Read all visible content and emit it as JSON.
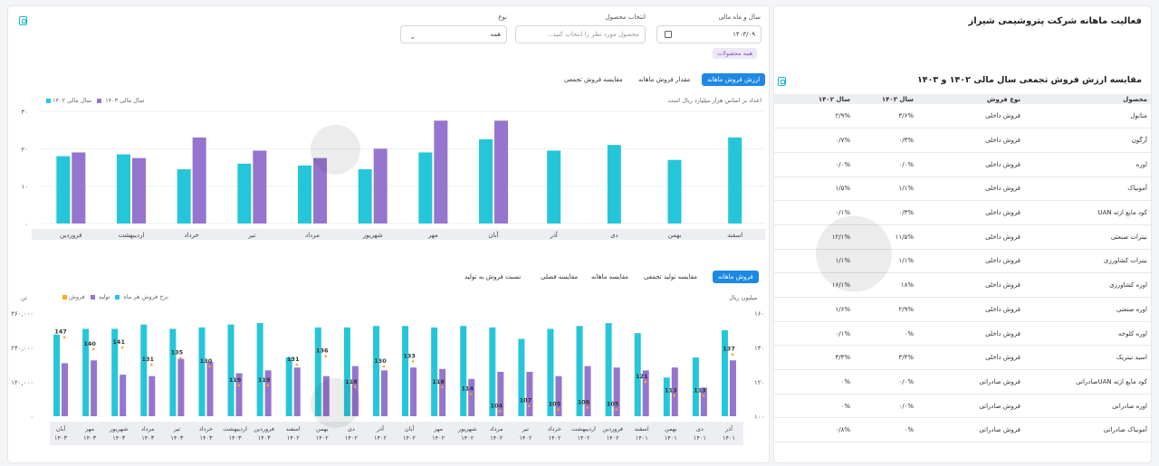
{
  "page_title": "فعالیت ماهانه شرکت پتروشیمی شیراز",
  "filters": {
    "year_month_label": "سال و ماه مالی",
    "year_month_value": "۱۴۰۳/۰۹",
    "product_label": "انتخاب محصول",
    "product_placeholder": "محصول مورد نظر را انتخاب کنید...",
    "type_label": "نوع",
    "type_value": "همه",
    "all_products_chip": "همه محصولات"
  },
  "top_chart": {
    "tabs": [
      "ارزش فروش ماهانه",
      "مقدار فروش ماهانه",
      "مقایسه فروش تجمعی"
    ],
    "active_tab": 0,
    "note": "اعداد بر اساس هزار میلیارد ریال است",
    "legend": [
      "سال مالی ۱۴۰۳",
      "سال مالی ۱۴۰۲"
    ],
    "y_ticks": [
      "۰",
      "۱۰",
      "۲۰",
      "۳۰"
    ]
  },
  "bottom_chart": {
    "tabs": [
      "فروش ماهانه",
      "مقایسه تولید تجمعی",
      "مقایسه ماهانه",
      "مقایسه فصلی",
      "نسبت فروش به تولید"
    ],
    "active_tab": 0,
    "legend": [
      "فروش",
      "تولید",
      "نرخ فروش هر ماه"
    ],
    "left_axis_label": "تن",
    "right_axis_label": "میلیون ریال",
    "left_ticks": [
      "۰",
      "۱۲۰,۰۰۰",
      "۲۴۰,۰۰۰",
      "۳۶۰,۰۰۰"
    ],
    "right_ticks": [
      "۱۰۰",
      "۱۲۰",
      "۱۴۰",
      "۱۶۰"
    ]
  },
  "right_panel": {
    "title": "مقایسه ارزش فروش تجمعی سال مالی ۱۴۰۲ و ۱۴۰۳",
    "columns": [
      "محصول",
      "نوع فروش",
      "سال ۱۴۰۳",
      "سال ۱۴۰۲"
    ],
    "rows": [
      [
        "متانول",
        "فروش داخلی",
        "۳/۶%",
        "۲/۹%"
      ],
      [
        "آرگون",
        "فروش داخلی",
        "۰/۳%",
        "۰/۷%"
      ],
      [
        "اوره",
        "فروش داخلی",
        "۰/۰%",
        "۰/۰%"
      ],
      [
        "آمونیاک",
        "فروش داخلی",
        "۱/۱%",
        "۱/۵%"
      ],
      [
        "کود مایع ازته UAN",
        "فروش داخلی",
        "۰/۳%",
        "۰/۱%"
      ],
      [
        "نیترات صنعتی",
        "فروش داخلی",
        "۱۱/۵%",
        "۱۲/۱%"
      ],
      [
        "نیترات کشاورزی",
        "فروش داخلی",
        "۱/۱%",
        "۱/۱%"
      ],
      [
        "اوره کشاورزی",
        "فروش داخلی",
        "۱۸%",
        "۱۶/۱%"
      ],
      [
        "اوره صنعتی",
        "فروش داخلی",
        "۲/۹%",
        "۱/۶%"
      ],
      [
        "اوره کلوخه",
        "فروش داخلی",
        "۰%",
        "۰/۱%"
      ],
      [
        "اسید نیتریک",
        "فروش داخلی",
        "۳/۴%",
        "۳/۴%"
      ],
      [
        "کود مایع ازته UANصادراتی",
        "فروش صادراتی",
        "۰/۰%",
        "۰%"
      ],
      [
        "اوره صادراتی",
        "فروش صادراتی",
        "۰/۰%",
        "۰%"
      ],
      [
        "آمونیاک صادراتی",
        "فروش صادراتی",
        "۰%",
        "۰/۸%"
      ]
    ]
  },
  "colors": {
    "cyan": "#26c6da",
    "purple": "#9575cd",
    "orange": "#ffa726",
    "active_tab": "#1e88e5"
  },
  "chart_data": [
    {
      "type": "bar",
      "title": "",
      "categories": [
        "اسفند",
        "بهمن",
        "دی",
        "آذر",
        "آبان",
        "مهر",
        "شهریور",
        "مرداد",
        "تیر",
        "خرداد",
        "اردیبهشت",
        "فروردین"
      ],
      "series": [
        {
          "name": "سال مالی ۱۴۰۳",
          "values": [
            23,
            17,
            21,
            19.5,
            22.5,
            19,
            14.5,
            15.5,
            16,
            14.5,
            18.5,
            18
          ]
        },
        {
          "name": "سال مالی ۱۴۰۲",
          "values": [
            null,
            null,
            null,
            null,
            27.5,
            27.5,
            20,
            17.5,
            19.5,
            23,
            17.5,
            19
          ]
        }
      ],
      "ylim": [
        0,
        30
      ]
    },
    {
      "type": "bar",
      "title": "",
      "categories": [
        "آذر ۱۴۰۱",
        "دی ۱۴۰۱",
        "بهمن ۱۴۰۱",
        "اسفند ۱۴۰۱",
        "فروردین ۱۴۰۲",
        "اردیبهشت ۱۴۰۲",
        "خرداد ۱۴۰۲",
        "تیر ۱۴۰۲",
        "مرداد ۱۴۰۲",
        "شهریور ۱۴۰۲",
        "مهر ۱۴۰۲",
        "آبان ۱۴۰۲",
        "آذر ۱۴۰۲",
        "دی ۱۴۰۲",
        "بهمن ۱۴۰۲",
        "اسفند ۱۴۰۲",
        "فروردین ۱۴۰۳",
        "اردیبهشت ۱۴۰۳",
        "خرداد ۱۴۰۳",
        "تیر ۱۴۰۳",
        "مرداد ۱۴۰۳",
        "شهریور ۱۴۰۳",
        "مهر ۱۴۰۳",
        "آبان ۱۴۰۳"
      ],
      "series": [
        {
          "name": "تولید",
          "values": [
            300000,
            205000,
            135000,
            290000,
            325000,
            315000,
            305000,
            270000,
            310000,
            315000,
            310000,
            315000,
            315000,
            310000,
            310000,
            205000,
            325000,
            320000,
            310000,
            305000,
            320000,
            305000,
            305000,
            285000
          ]
        },
        {
          "name": "فروش",
          "values": [
            195000,
            100000,
            170000,
            160000,
            170000,
            175000,
            140000,
            155000,
            155000,
            130000,
            165000,
            170000,
            160000,
            175000,
            140000,
            170000,
            160000,
            150000,
            190000,
            200000,
            140000,
            145000,
            195000,
            185000
          ]
        }
      ],
      "line": {
        "name": "نرخ فروش هر ماه",
        "values": [
          137,
          113,
          113,
          121,
          105,
          106,
          105,
          107,
          104,
          114,
          118,
          133,
          130,
          118,
          136,
          131,
          119,
          119,
          130,
          135,
          131,
          141,
          140,
          147
        ]
      },
      "ylim": [
        0,
        360000
      ],
      "y2lim": [
        100,
        160
      ]
    }
  ]
}
